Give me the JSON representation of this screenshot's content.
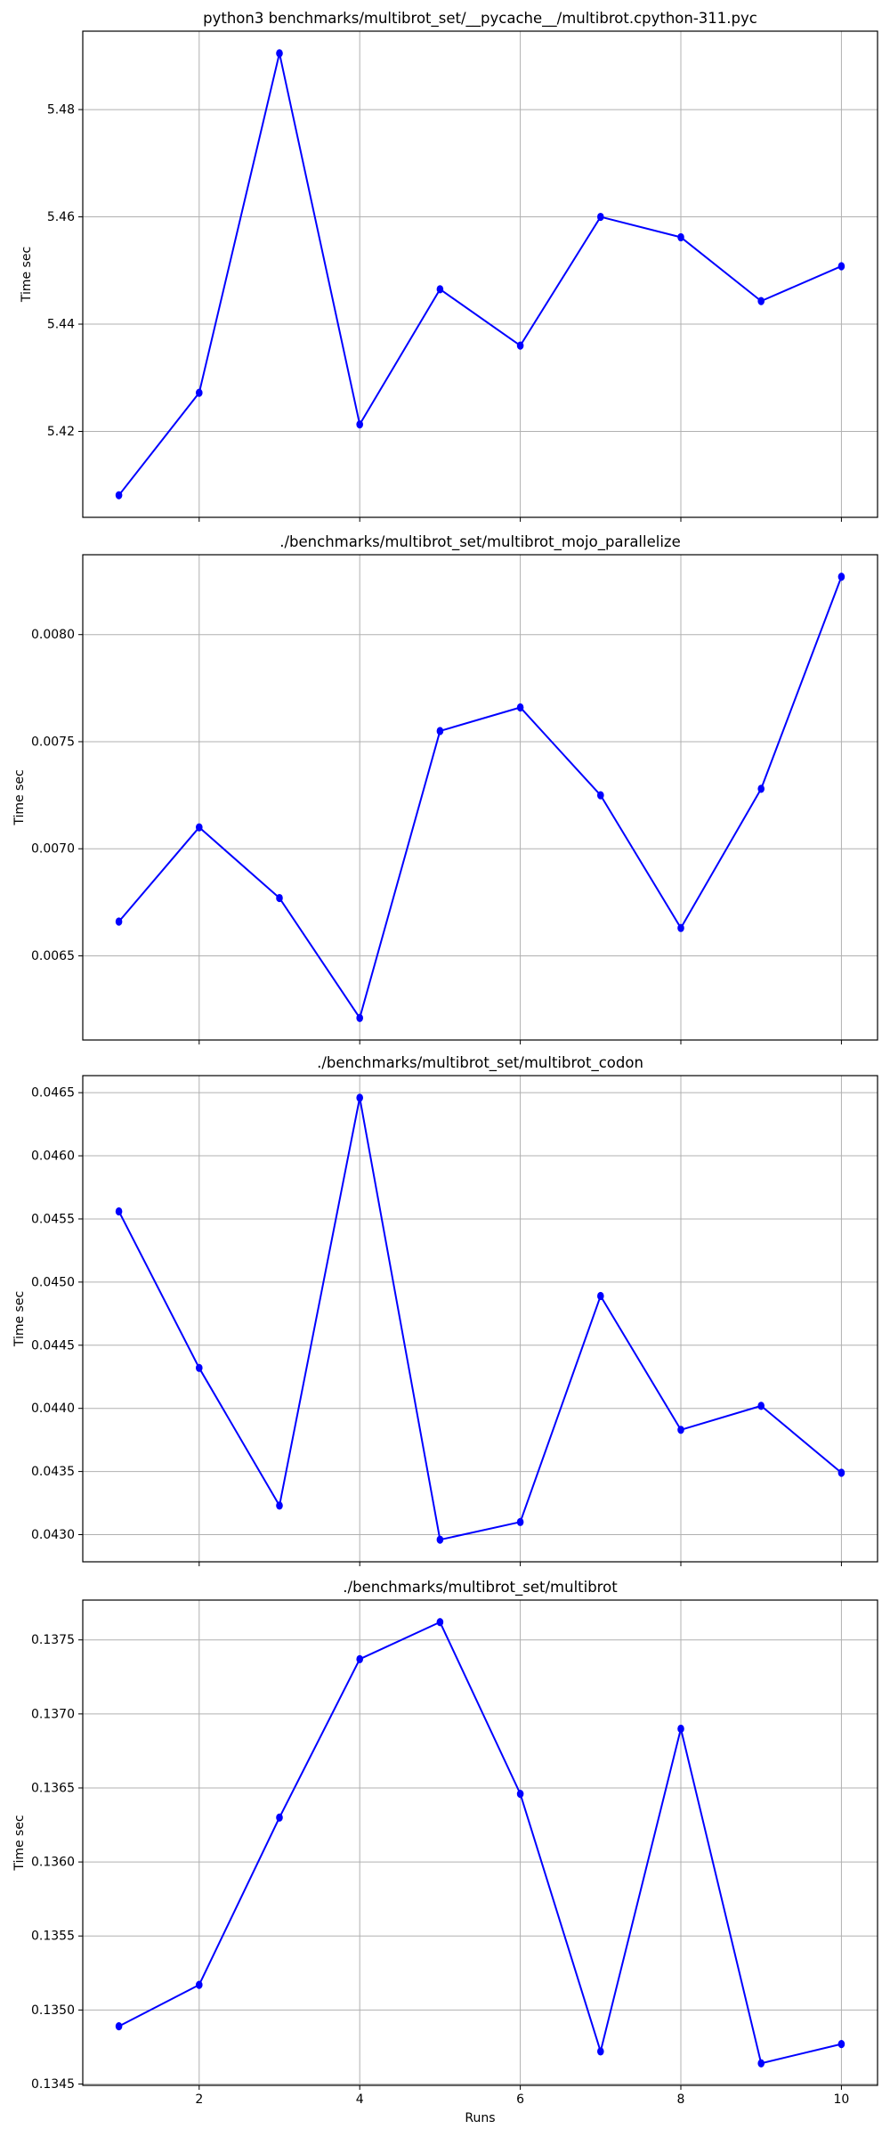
{
  "colors": {
    "line": "#0000ff",
    "marker": "#0000ff",
    "grid": "#b0b0b0",
    "spine": "#000000",
    "text": "#000000",
    "background": "#ffffff"
  },
  "chart_data": [
    {
      "type": "line",
      "title": "python3 benchmarks/multibrot_set/__pycache__/multibrot.cpython-311.pyc",
      "ylabel": "Time sec",
      "xlabel": "",
      "x": [
        1,
        2,
        3,
        4,
        5,
        6,
        7,
        8,
        9,
        10
      ],
      "values": [
        5.4081,
        5.4272,
        5.4905,
        5.4213,
        5.4465,
        5.436,
        5.46,
        5.4562,
        5.4443,
        5.4508
      ],
      "xlim": [
        0.55,
        10.45
      ],
      "ylim": [
        5.40398,
        5.49462
      ],
      "xticks": [
        2,
        4,
        6,
        8,
        10
      ],
      "xtick_labels": [
        "2",
        "4",
        "6",
        "8",
        "10"
      ],
      "show_xtick_labels": false,
      "yticks": [
        5.42,
        5.44,
        5.46,
        5.48
      ],
      "ytick_labels": [
        "5.42",
        "5.44",
        "5.46",
        "5.48"
      ],
      "grid": true,
      "legend": "none"
    },
    {
      "type": "line",
      "title": "./benchmarks/multibrot_set/multibrot_mojo_parallelize",
      "ylabel": "Time sec",
      "xlabel": "",
      "x": [
        1,
        2,
        3,
        4,
        5,
        6,
        7,
        8,
        9,
        10
      ],
      "values": [
        0.00666,
        0.0071,
        0.00677,
        0.00621,
        0.00755,
        0.00766,
        0.00725,
        0.00663,
        0.00728,
        0.00827
      ],
      "xlim": [
        0.55,
        10.45
      ],
      "ylim": [
        0.006107,
        0.008373
      ],
      "xticks": [
        2,
        4,
        6,
        8,
        10
      ],
      "xtick_labels": [
        "2",
        "4",
        "6",
        "8",
        "10"
      ],
      "show_xtick_labels": false,
      "yticks": [
        0.0065,
        0.007,
        0.0075,
        0.008
      ],
      "ytick_labels": [
        "0.0065",
        "0.0070",
        "0.0075",
        "0.0080"
      ],
      "grid": true,
      "legend": "none"
    },
    {
      "type": "line",
      "title": "./benchmarks/multibrot_set/multibrot_codon",
      "ylabel": "Time sec",
      "xlabel": "",
      "x": [
        1,
        2,
        3,
        4,
        5,
        6,
        7,
        8,
        9,
        10
      ],
      "values": [
        0.04556,
        0.04432,
        0.04323,
        0.04646,
        0.04296,
        0.0431,
        0.04489,
        0.04383,
        0.04402,
        0.04349
      ],
      "xlim": [
        0.55,
        10.45
      ],
      "ylim": [
        0.042785,
        0.046635
      ],
      "xticks": [
        2,
        4,
        6,
        8,
        10
      ],
      "xtick_labels": [
        "2",
        "4",
        "6",
        "8",
        "10"
      ],
      "show_xtick_labels": false,
      "yticks": [
        0.043,
        0.0435,
        0.044,
        0.0445,
        0.045,
        0.0455,
        0.046,
        0.0465
      ],
      "ytick_labels": [
        "0.0430",
        "0.0435",
        "0.0440",
        "0.0445",
        "0.0450",
        "0.0455",
        "0.0460",
        "0.0465"
      ],
      "grid": true,
      "legend": "none"
    },
    {
      "type": "line",
      "title": "./benchmarks/multibrot_set/multibrot",
      "ylabel": "Time sec",
      "xlabel": "Runs",
      "x": [
        1,
        2,
        3,
        4,
        5,
        6,
        7,
        8,
        9,
        10
      ],
      "values": [
        0.13489,
        0.13517,
        0.1363,
        0.13737,
        0.13762,
        0.13646,
        0.13472,
        0.1369,
        0.13464,
        0.13477
      ],
      "xlim": [
        0.55,
        10.45
      ],
      "ylim": [
        0.134491,
        0.137769
      ],
      "xticks": [
        2,
        4,
        6,
        8,
        10
      ],
      "xtick_labels": [
        "2",
        "4",
        "6",
        "8",
        "10"
      ],
      "show_xtick_labels": true,
      "yticks": [
        0.1345,
        0.135,
        0.1355,
        0.136,
        0.1365,
        0.137,
        0.1375
      ],
      "ytick_labels": [
        "0.1345",
        "0.1350",
        "0.1355",
        "0.1360",
        "0.1365",
        "0.1370",
        "0.1375"
      ],
      "grid": true,
      "legend": "none"
    }
  ]
}
